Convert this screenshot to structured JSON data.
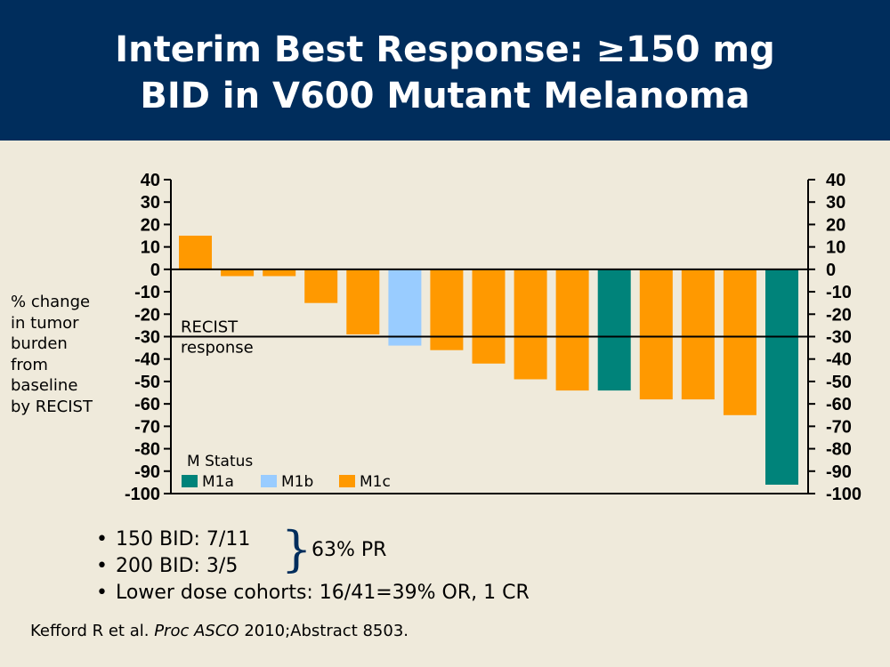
{
  "title": {
    "line1": "Interim Best Response: ≥150 mg",
    "line2": "BID in V600 Mutant Melanoma"
  },
  "chart_data": {
    "type": "bar",
    "ylabel": "% change in tumor burden from baseline by RECIST",
    "ylabel_lines": [
      "% change",
      "in tumor",
      "burden",
      "from",
      "baseline",
      "by RECIST"
    ],
    "ylim": [
      -100,
      40
    ],
    "yticks": [
      40,
      30,
      20,
      10,
      0,
      -10,
      -20,
      -30,
      -40,
      -50,
      -60,
      -70,
      -80,
      -90,
      -100
    ],
    "reference_line": {
      "y": -30,
      "label_lines": [
        "RECIST",
        "response"
      ]
    },
    "legend": {
      "title": "M Status",
      "position": "bottom-left",
      "items": [
        {
          "name": "M1a",
          "color": "#00837a"
        },
        {
          "name": "M1b",
          "color": "#99ccff"
        },
        {
          "name": "M1c",
          "color": "#ff9900"
        }
      ]
    },
    "bars": [
      {
        "value": 15,
        "status": "M1c"
      },
      {
        "value": -3,
        "status": "M1c"
      },
      {
        "value": -3,
        "status": "M1c"
      },
      {
        "value": -15,
        "status": "M1c"
      },
      {
        "value": -29,
        "status": "M1c"
      },
      {
        "value": -34,
        "status": "M1b"
      },
      {
        "value": -36,
        "status": "M1c"
      },
      {
        "value": -42,
        "status": "M1c"
      },
      {
        "value": -49,
        "status": "M1c"
      },
      {
        "value": -54,
        "status": "M1c"
      },
      {
        "value": -54,
        "status": "M1a"
      },
      {
        "value": -58,
        "status": "M1c"
      },
      {
        "value": -58,
        "status": "M1c"
      },
      {
        "value": -65,
        "status": "M1c"
      },
      {
        "value": -96,
        "status": "M1a"
      }
    ]
  },
  "bullets": {
    "b1": "150 BID: 7/11",
    "b2": "200 BID: 3/5",
    "b3": "Lower dose cohorts: 16/41=39% OR, 1 CR",
    "brace": "}",
    "pr": "63% PR",
    "symbol": "•"
  },
  "citation": {
    "authors": "Kefford R et al.",
    "journal": "Proc ASCO",
    "rest": "2010;Abstract 8503."
  }
}
